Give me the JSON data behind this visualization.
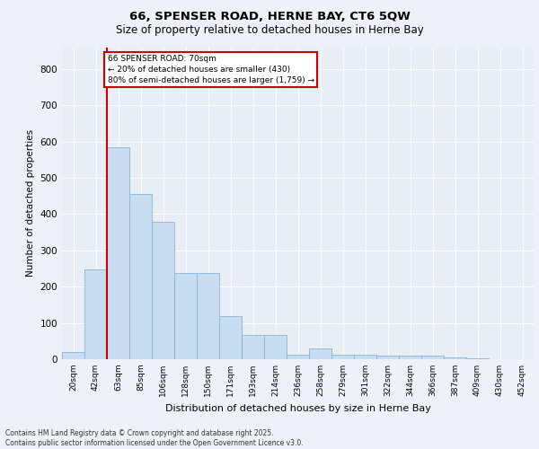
{
  "title_line1": "66, SPENSER ROAD, HERNE BAY, CT6 5QW",
  "title_line2": "Size of property relative to detached houses in Herne Bay",
  "xlabel": "Distribution of detached houses by size in Herne Bay",
  "ylabel": "Number of detached properties",
  "categories": [
    "20sqm",
    "42sqm",
    "63sqm",
    "85sqm",
    "106sqm",
    "128sqm",
    "150sqm",
    "171sqm",
    "193sqm",
    "214sqm",
    "236sqm",
    "258sqm",
    "279sqm",
    "301sqm",
    "322sqm",
    "344sqm",
    "366sqm",
    "387sqm",
    "409sqm",
    "430sqm",
    "452sqm"
  ],
  "values": [
    20,
    248,
    585,
    455,
    378,
    237,
    237,
    120,
    68,
    68,
    13,
    30,
    13,
    13,
    10,
    10,
    10,
    5,
    2,
    0,
    0
  ],
  "bar_color": "#c9ddf0",
  "bar_edge_color": "#8ab4d8",
  "vline_color": "#cc0000",
  "vline_pos": 1.5,
  "annotation_text": "66 SPENSER ROAD: 70sqm\n← 20% of detached houses are smaller (430)\n80% of semi-detached houses are larger (1,759) →",
  "annotation_box_color": "#ffffff",
  "annotation_box_edge": "#cc0000",
  "ylim": [
    0,
    860
  ],
  "yticks": [
    0,
    100,
    200,
    300,
    400,
    500,
    600,
    700,
    800
  ],
  "footer_text": "Contains HM Land Registry data © Crown copyright and database right 2025.\nContains public sector information licensed under the Open Government Licence v3.0.",
  "background_color": "#eef2f8",
  "plot_background": "#e8eef6",
  "grid_color": "#ffffff",
  "title_fontsize": 9.5,
  "subtitle_fontsize": 8.5,
  "ylabel_fontsize": 7.5,
  "xlabel_fontsize": 8.0,
  "tick_fontsize": 6.5,
  "footer_fontsize": 5.5
}
